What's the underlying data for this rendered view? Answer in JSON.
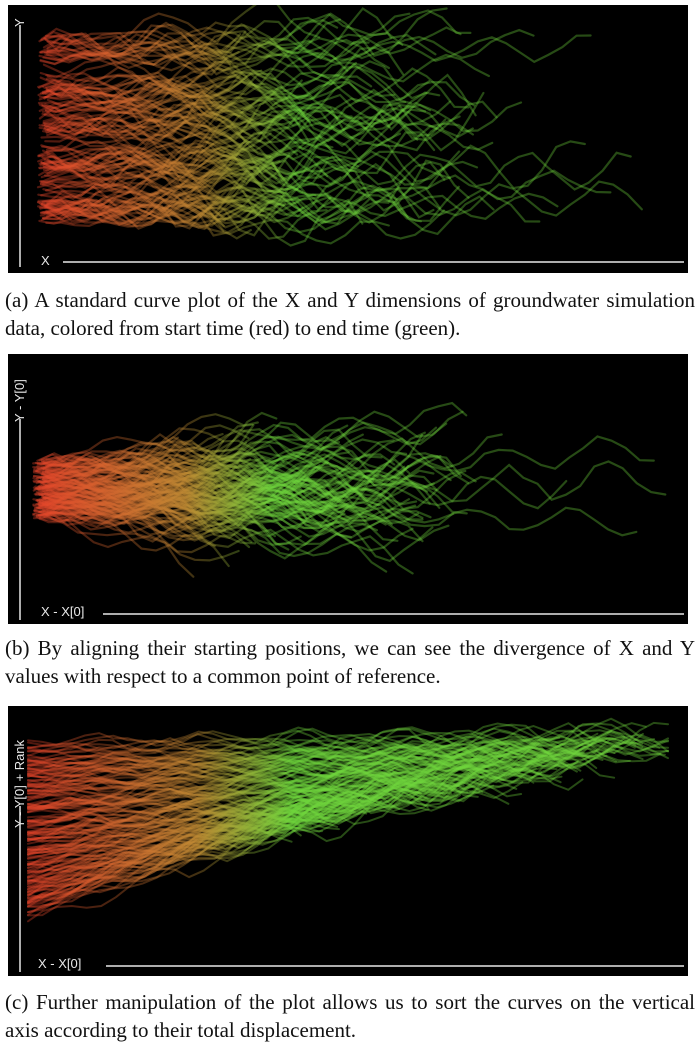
{
  "figures": [
    {
      "id": "a",
      "x_axis_label": "X",
      "y_axis_label": "Y",
      "caption": "(a)  A standard curve plot of the X and Y dimensions of groundwater simulation data, colored from start time (red) to end time (green)."
    },
    {
      "id": "b",
      "x_axis_label": "X - X[0]",
      "y_axis_label": "Y - Y[0]",
      "caption": "(b)  By aligning their starting positions, we can see the divergence of X and Y values with respect to a common point of reference."
    },
    {
      "id": "c",
      "x_axis_label": "X - X[0]",
      "y_axis_label": "Y - Y[0] + Rank",
      "caption": "(c)  Further manipulation of the plot allows us to sort the curves on the vertical axis according to their total displacement."
    }
  ],
  "colors": {
    "background": "#000000",
    "start_time": "#e8432a",
    "end_time": "#6fd63c",
    "axis": "#e8e8e8"
  }
}
